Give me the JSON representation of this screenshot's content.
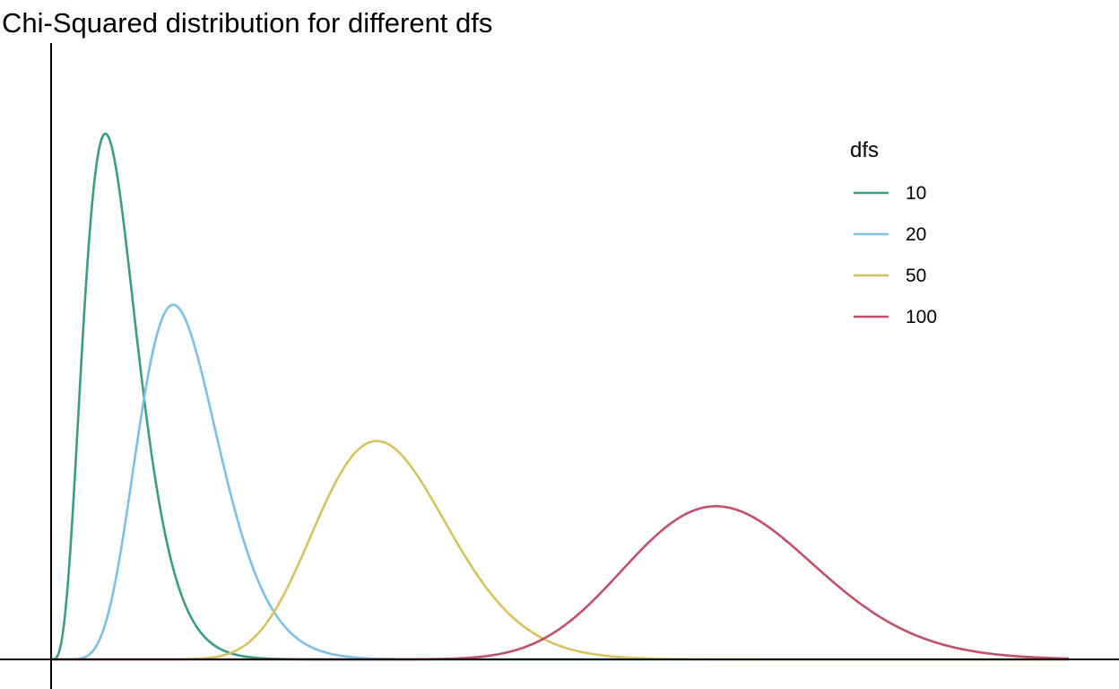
{
  "chart_data": {
    "type": "line",
    "title": "Chi-Squared distribution for different dfs",
    "xlabel": "",
    "ylabel": "",
    "legend": {
      "title": "dfs",
      "position": "right"
    },
    "xlim": [
      0,
      150
    ],
    "ylim": [
      0,
      0.1
    ],
    "grid": false,
    "axes": "cross-lines, no ticks or tick labels",
    "series": [
      {
        "name": "10",
        "df": 10,
        "color": "#3a9b87"
      },
      {
        "name": "20",
        "df": 20,
        "color": "#7cc0e2"
      },
      {
        "name": "50",
        "df": 50,
        "color": "#d6c25f"
      },
      {
        "name": "100",
        "df": 100,
        "color": "#c0506a"
      }
    ]
  }
}
